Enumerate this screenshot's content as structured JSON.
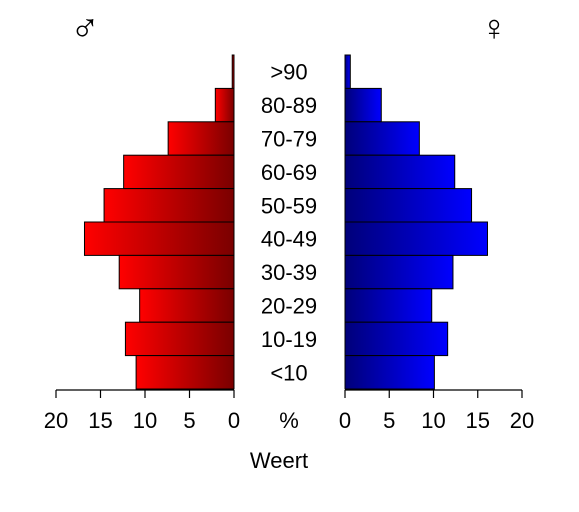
{
  "chart_data": {
    "type": "bar",
    "title": "",
    "subtitle": "",
    "xlabel": "Weert",
    "unit_label": "%",
    "male_symbol": "♂",
    "female_symbol": "♀",
    "categories": [
      ">90",
      "80-89",
      "70-79",
      "60-69",
      "50-59",
      "40-49",
      "30-39",
      "20-29",
      "10-19",
      "<10"
    ],
    "series": [
      {
        "side": "left",
        "values": [
          0.2,
          2.1,
          7.4,
          12.4,
          14.6,
          16.8,
          12.9,
          10.6,
          12.2,
          11.0
        ]
      },
      {
        "side": "right",
        "values": [
          0.6,
          4.1,
          8.4,
          12.4,
          14.3,
          16.1,
          12.2,
          9.8,
          11.6,
          10.1
        ]
      }
    ],
    "xlim": [
      0,
      20
    ],
    "ticks": [
      "0",
      "5",
      "10",
      "15",
      "20"
    ],
    "colors": {
      "left_light": "#ff0000",
      "left_dark": "#7a0000",
      "right_light": "#0000ff",
      "right_dark": "#00007a"
    },
    "grid": false,
    "legend": "none"
  }
}
